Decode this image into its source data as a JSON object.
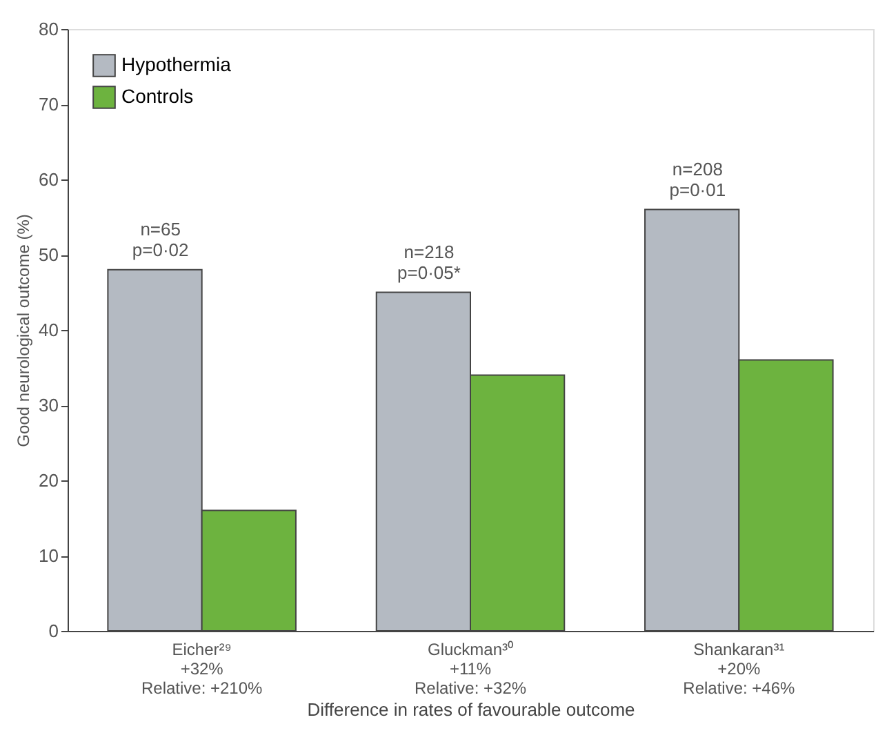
{
  "chart_data": {
    "type": "bar",
    "xlabel": "Difference in rates of favourable outcome",
    "ylabel": "Good neurological outcome (%)",
    "categories": [
      "Eicher²⁹\n+32%\nRelative: +210%",
      "Gluckman³⁰\n+11%\nRelative: +32%",
      "Shankaran³¹\n+20%\nRelative: +46%"
    ],
    "series": [
      {
        "name": "Hypothermia",
        "color": "#b4bac2",
        "values": [
          48,
          45,
          56
        ]
      },
      {
        "name": "Controls",
        "color": "#6db33f",
        "values": [
          16,
          34,
          36
        ]
      }
    ],
    "ylim": [
      0,
      80
    ],
    "yticks": [
      0,
      10,
      20,
      30,
      40,
      50,
      60,
      70,
      80
    ],
    "grid": false,
    "legend": "top left",
    "annotations": [
      "n=65\np=0·02",
      "n=218\np=0·05*",
      "n=208\np=0·01"
    ]
  }
}
